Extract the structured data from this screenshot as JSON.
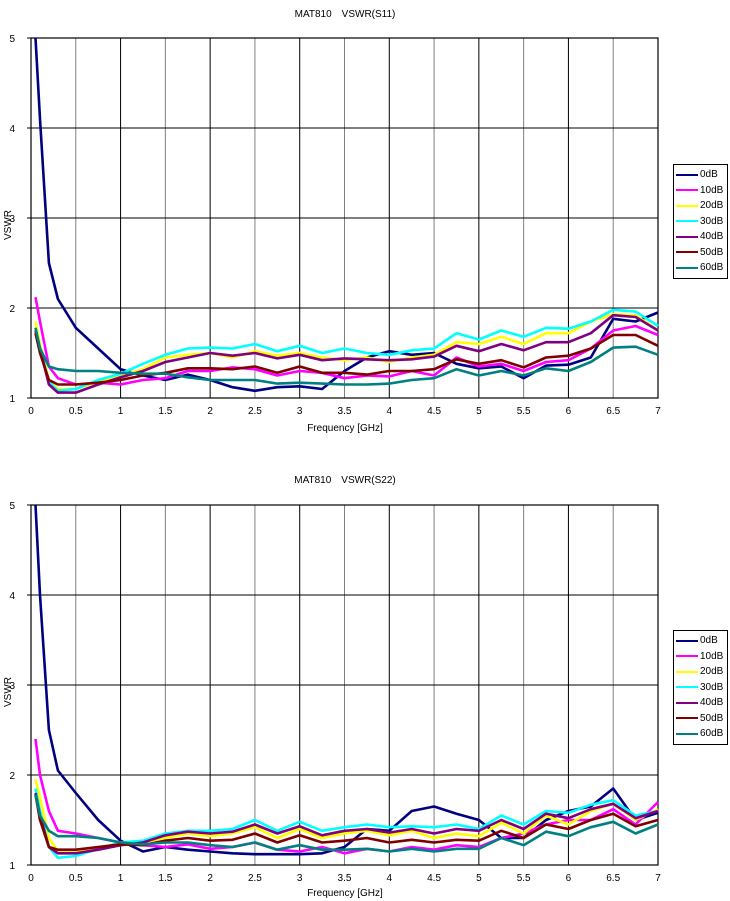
{
  "chart_data": [
    {
      "type": "line",
      "title": "MAT810　VSWR(S11)",
      "xlabel": "Frequency [GHz]",
      "ylabel": "VSWR",
      "xlim": [
        0,
        7
      ],
      "ylim": [
        1,
        5
      ],
      "xticks": [
        "0",
        "0.5",
        "1",
        "1.5",
        "2",
        "2.5",
        "3",
        "3.5",
        "4",
        "4.5",
        "5",
        "5.5",
        "6",
        "6.5",
        "7"
      ],
      "yticks": [
        "1",
        "2",
        "3",
        "4",
        "5"
      ],
      "grid": true,
      "legend_position": "right",
      "x": [
        0.05,
        0.1,
        0.2,
        0.3,
        0.5,
        0.75,
        1,
        1.25,
        1.5,
        1.75,
        2,
        2.25,
        2.5,
        2.75,
        3,
        3.25,
        3.5,
        3.75,
        4,
        4.25,
        4.5,
        4.75,
        5,
        5.25,
        5.5,
        5.75,
        6,
        6.25,
        6.5,
        6.75,
        7
      ],
      "series": [
        {
          "name": "0dB",
          "color": "#000080",
          "values": [
            5.0,
            4.1,
            2.5,
            2.1,
            1.78,
            1.55,
            1.32,
            1.25,
            1.2,
            1.26,
            1.2,
            1.12,
            1.08,
            1.12,
            1.13,
            1.1,
            1.3,
            1.45,
            1.52,
            1.48,
            1.5,
            1.38,
            1.33,
            1.35,
            1.22,
            1.36,
            1.37,
            1.45,
            1.88,
            1.85,
            1.95
          ]
        },
        {
          "name": "10dB",
          "color": "#ff00ff",
          "values": [
            2.12,
            1.85,
            1.35,
            1.22,
            1.15,
            1.17,
            1.15,
            1.2,
            1.22,
            1.3,
            1.3,
            1.34,
            1.32,
            1.25,
            1.3,
            1.28,
            1.22,
            1.25,
            1.24,
            1.3,
            1.25,
            1.45,
            1.35,
            1.38,
            1.3,
            1.4,
            1.42,
            1.55,
            1.75,
            1.8,
            1.7
          ]
        },
        {
          "name": "20dB",
          "color": "#ffff00",
          "values": [
            1.85,
            1.6,
            1.2,
            1.1,
            1.1,
            1.18,
            1.25,
            1.32,
            1.45,
            1.48,
            1.5,
            1.45,
            1.52,
            1.47,
            1.5,
            1.45,
            1.42,
            1.45,
            1.4,
            1.45,
            1.48,
            1.62,
            1.6,
            1.68,
            1.6,
            1.72,
            1.72,
            1.85,
            1.93,
            1.92,
            1.75
          ]
        },
        {
          "name": "30dB",
          "color": "#00ffff",
          "values": [
            1.78,
            1.55,
            1.18,
            1.08,
            1.1,
            1.2,
            1.27,
            1.38,
            1.48,
            1.55,
            1.56,
            1.55,
            1.6,
            1.52,
            1.58,
            1.5,
            1.55,
            1.5,
            1.48,
            1.53,
            1.55,
            1.72,
            1.65,
            1.75,
            1.68,
            1.78,
            1.77,
            1.85,
            1.98,
            1.96,
            1.8
          ]
        },
        {
          "name": "40dB",
          "color": "#800080",
          "values": [
            1.75,
            1.55,
            1.15,
            1.06,
            1.06,
            1.15,
            1.23,
            1.3,
            1.4,
            1.45,
            1.5,
            1.47,
            1.5,
            1.44,
            1.48,
            1.42,
            1.44,
            1.43,
            1.42,
            1.43,
            1.46,
            1.58,
            1.52,
            1.6,
            1.53,
            1.62,
            1.62,
            1.72,
            1.92,
            1.9,
            1.75
          ]
        },
        {
          "name": "50dB",
          "color": "#800000",
          "values": [
            1.72,
            1.5,
            1.2,
            1.15,
            1.15,
            1.17,
            1.2,
            1.25,
            1.28,
            1.33,
            1.33,
            1.32,
            1.35,
            1.28,
            1.35,
            1.28,
            1.28,
            1.26,
            1.3,
            1.3,
            1.32,
            1.43,
            1.38,
            1.42,
            1.34,
            1.45,
            1.47,
            1.55,
            1.7,
            1.7,
            1.58
          ]
        },
        {
          "name": "60dB",
          "color": "#008080",
          "values": [
            1.78,
            1.55,
            1.35,
            1.32,
            1.3,
            1.3,
            1.28,
            1.27,
            1.27,
            1.23,
            1.2,
            1.2,
            1.2,
            1.16,
            1.17,
            1.16,
            1.15,
            1.15,
            1.16,
            1.2,
            1.22,
            1.32,
            1.25,
            1.3,
            1.25,
            1.33,
            1.3,
            1.4,
            1.56,
            1.57,
            1.48
          ]
        }
      ]
    },
    {
      "type": "line",
      "title": "MAT810　VSWR(S22)",
      "xlabel": "Frequency [GHz]",
      "ylabel": "VSWR",
      "xlim": [
        0,
        7
      ],
      "ylim": [
        1,
        5
      ],
      "xticks": [
        "0",
        "0.5",
        "1",
        "1.5",
        "2",
        "2.5",
        "3",
        "3.5",
        "4",
        "4.5",
        "5",
        "5.5",
        "6",
        "6.5",
        "7"
      ],
      "yticks": [
        "1",
        "2",
        "3",
        "4",
        "5"
      ],
      "grid": true,
      "legend_position": "right",
      "x": [
        0.05,
        0.1,
        0.2,
        0.3,
        0.5,
        0.75,
        1,
        1.25,
        1.5,
        1.75,
        2,
        2.25,
        2.5,
        2.75,
        3,
        3.25,
        3.5,
        3.75,
        4,
        4.25,
        4.5,
        4.75,
        5,
        5.25,
        5.5,
        5.75,
        6,
        6.25,
        6.5,
        6.75,
        7
      ],
      "series": [
        {
          "name": "0dB",
          "color": "#000080",
          "values": [
            5.0,
            4.0,
            2.5,
            2.05,
            1.8,
            1.5,
            1.27,
            1.15,
            1.2,
            1.17,
            1.15,
            1.13,
            1.12,
            1.12,
            1.12,
            1.13,
            1.2,
            1.4,
            1.38,
            1.6,
            1.65,
            1.57,
            1.5,
            1.3,
            1.3,
            1.5,
            1.6,
            1.65,
            1.85,
            1.5,
            1.58
          ]
        },
        {
          "name": "10dB",
          "color": "#ff00ff",
          "values": [
            2.4,
            2.0,
            1.6,
            1.38,
            1.35,
            1.3,
            1.25,
            1.22,
            1.2,
            1.23,
            1.18,
            1.2,
            1.25,
            1.17,
            1.15,
            1.2,
            1.13,
            1.18,
            1.15,
            1.2,
            1.17,
            1.22,
            1.2,
            1.3,
            1.35,
            1.45,
            1.5,
            1.5,
            1.62,
            1.45,
            1.7
          ]
        },
        {
          "name": "20dB",
          "color": "#ffff00",
          "values": [
            1.95,
            1.75,
            1.3,
            1.15,
            1.15,
            1.18,
            1.22,
            1.25,
            1.3,
            1.35,
            1.32,
            1.35,
            1.42,
            1.3,
            1.4,
            1.3,
            1.35,
            1.38,
            1.33,
            1.38,
            1.3,
            1.35,
            1.32,
            1.47,
            1.35,
            1.55,
            1.45,
            1.6,
            1.68,
            1.5,
            1.62
          ]
        },
        {
          "name": "30dB",
          "color": "#00ffff",
          "values": [
            1.85,
            1.6,
            1.2,
            1.08,
            1.1,
            1.18,
            1.25,
            1.27,
            1.35,
            1.38,
            1.38,
            1.4,
            1.5,
            1.38,
            1.48,
            1.38,
            1.42,
            1.45,
            1.42,
            1.43,
            1.42,
            1.45,
            1.4,
            1.55,
            1.45,
            1.6,
            1.58,
            1.67,
            1.72,
            1.55,
            1.6
          ]
        },
        {
          "name": "40dB",
          "color": "#800080",
          "values": [
            1.8,
            1.55,
            1.2,
            1.13,
            1.13,
            1.17,
            1.22,
            1.25,
            1.33,
            1.37,
            1.35,
            1.37,
            1.45,
            1.35,
            1.43,
            1.33,
            1.38,
            1.4,
            1.36,
            1.4,
            1.35,
            1.4,
            1.38,
            1.5,
            1.4,
            1.57,
            1.52,
            1.62,
            1.68,
            1.52,
            1.6
          ]
        },
        {
          "name": "50dB",
          "color": "#800000",
          "values": [
            1.78,
            1.5,
            1.2,
            1.17,
            1.17,
            1.2,
            1.23,
            1.22,
            1.27,
            1.3,
            1.27,
            1.28,
            1.35,
            1.25,
            1.33,
            1.25,
            1.27,
            1.3,
            1.25,
            1.28,
            1.25,
            1.28,
            1.27,
            1.38,
            1.3,
            1.45,
            1.4,
            1.5,
            1.57,
            1.43,
            1.5
          ]
        },
        {
          "name": "60dB",
          "color": "#008080",
          "values": [
            1.78,
            1.55,
            1.38,
            1.32,
            1.32,
            1.3,
            1.25,
            1.23,
            1.25,
            1.25,
            1.22,
            1.2,
            1.25,
            1.17,
            1.22,
            1.17,
            1.17,
            1.18,
            1.15,
            1.18,
            1.15,
            1.18,
            1.18,
            1.3,
            1.22,
            1.37,
            1.32,
            1.42,
            1.48,
            1.35,
            1.45
          ]
        }
      ]
    }
  ]
}
